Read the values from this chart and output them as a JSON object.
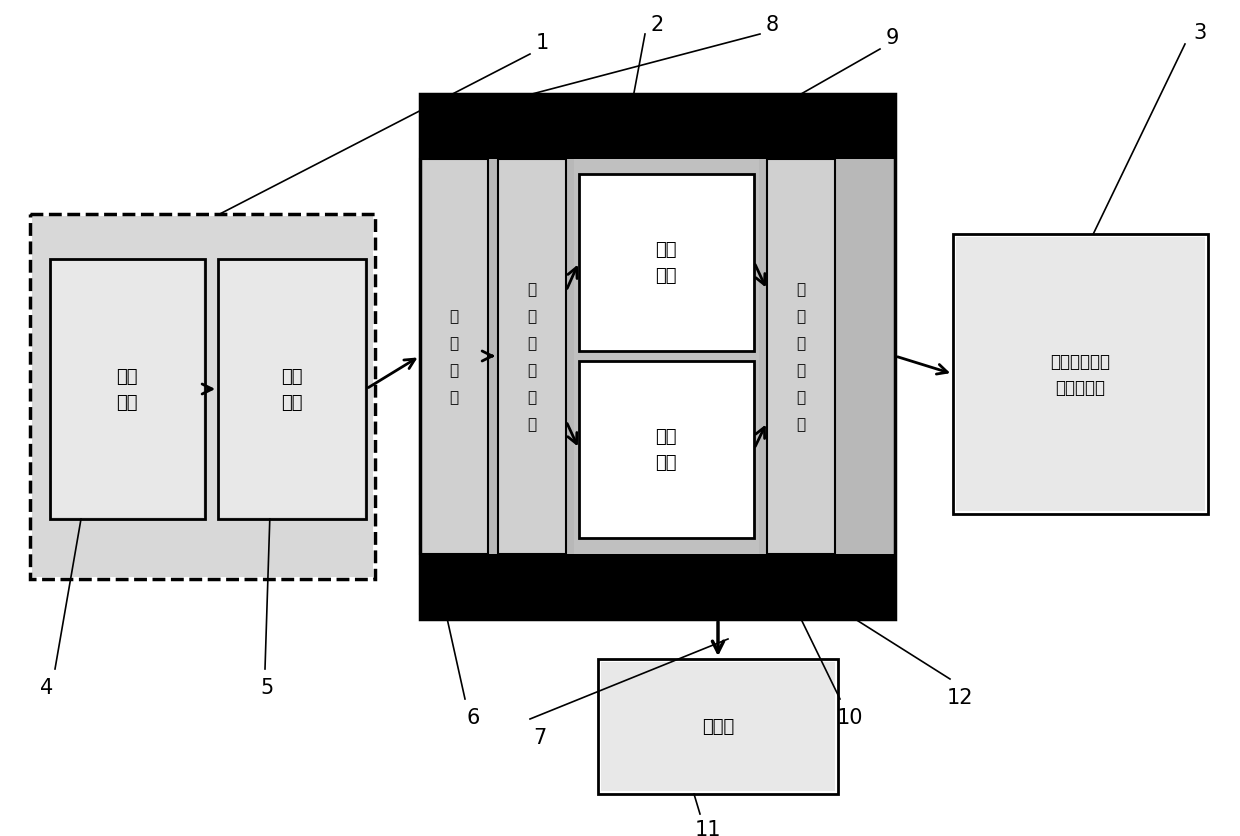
{
  "bg_color": "#ffffff",
  "fig_width": 12.4,
  "fig_height": 8.37,
  "dpi": 100,
  "text_optical": "光学\n系统",
  "text_image_capture": "图像\n采集",
  "text_data_collection": "数\n据\n采\n集",
  "text_image_processing": "图\n像\n处\n理\n模\n块",
  "text_color_temp": "比色\n测温",
  "text_diameter": "直径\n测量",
  "text_data_output": "数\n据\n输\n出\n接\n口",
  "text_process_control": "工艺优化控制\n模块及接口",
  "text_display": "显示器",
  "labels": [
    "1",
    "2",
    "3",
    "4",
    "5",
    "6",
    "7",
    "8",
    "9",
    "10",
    "11",
    "12"
  ]
}
